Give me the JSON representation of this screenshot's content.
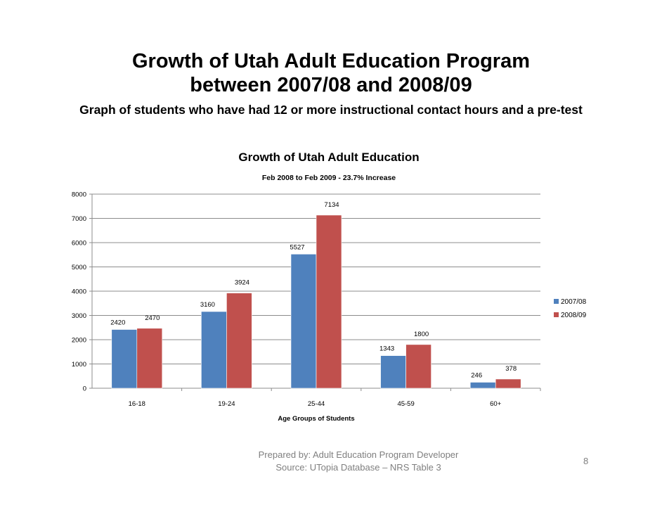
{
  "slide": {
    "title_line1": "Growth of Utah Adult Education Program",
    "title_line2": "between 2007/08 and 2008/09",
    "subtitle": "Graph of students who have had 12 or more instructional contact hours and a pre-test",
    "footer_line1": "Prepared by: Adult Education Program Developer",
    "footer_line2": "Source:  UTopia Database – NRS Table 3",
    "page_number": "8"
  },
  "chart_data": {
    "type": "bar",
    "title": "Growth of Utah Adult Education",
    "subtitle": "Feb 2008 to Feb 2009 - 23.7% Increase",
    "xlabel": "Age Groups of Students",
    "ylabel": "",
    "categories": [
      "16-18",
      "19-24",
      "25-44",
      "45-59",
      "60+"
    ],
    "series": [
      {
        "name": "2007/08",
        "color": "#4f81bd",
        "values": [
          2420,
          3160,
          5527,
          1343,
          246
        ]
      },
      {
        "name": "2008/09",
        "color": "#c0504d",
        "values": [
          2470,
          3924,
          7134,
          1800,
          378
        ]
      }
    ],
    "ylim": [
      0,
      8000
    ],
    "yticks": [
      0,
      1000,
      2000,
      3000,
      4000,
      5000,
      6000,
      7000,
      8000
    ],
    "grid": true,
    "legend": "right"
  }
}
